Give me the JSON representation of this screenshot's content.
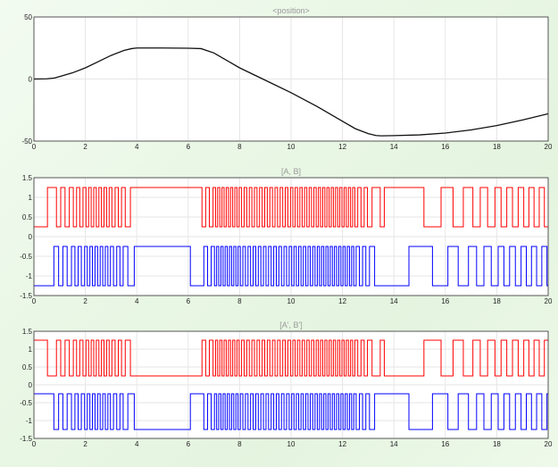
{
  "colors": {
    "page_bg": "#eaf7e6",
    "axes_bg": "#ffffff",
    "grid": "#e6e6e6",
    "position_line": "#111111",
    "signal_a": "#ff0000",
    "signal_b": "#0000ff",
    "title_text": "#9a9a9a"
  },
  "chart_data": [
    {
      "type": "line",
      "title": "<position>",
      "xlabel": "",
      "ylabel": "",
      "xlim": [
        0,
        20
      ],
      "ylim": [
        -50,
        50
      ],
      "x_ticks": [
        "0",
        "2",
        "4",
        "6",
        "8",
        "10",
        "12",
        "14",
        "16",
        "18",
        "20"
      ],
      "y_ticks": [
        "50",
        "0",
        "-50"
      ],
      "grid": true,
      "legend": "none",
      "series": [
        {
          "color": "#111111",
          "x": [
            0,
            0.5,
            0.8,
            1.0,
            1.5,
            2.0,
            2.5,
            3.0,
            3.5,
            3.8,
            4.0,
            5.0,
            6.0,
            6.5,
            7.0,
            7.5,
            8.0,
            9.0,
            10.0,
            11.0,
            12.0,
            12.5,
            13.0,
            13.3,
            13.5,
            14.0,
            15.0,
            16.0,
            17.0,
            18.0,
            19.0,
            20.0
          ],
          "y": [
            0,
            0.2,
            0.8,
            2,
            5,
            9,
            14,
            19,
            23,
            24.5,
            25,
            25,
            24.8,
            24.5,
            21,
            15,
            9,
            -1,
            -11,
            -22,
            -34,
            -40,
            -44,
            -45.5,
            -45.8,
            -45.6,
            -45,
            -43.5,
            -41,
            -37.5,
            -33,
            -28
          ]
        }
      ]
    },
    {
      "type": "line",
      "title": "[A, B]",
      "xlabel": "",
      "ylabel": "",
      "xlim": [
        0,
        20
      ],
      "ylim": [
        -1.5,
        1.5
      ],
      "x_ticks": [
        "0",
        "2",
        "4",
        "6",
        "8",
        "10",
        "12",
        "14",
        "16",
        "18",
        "20"
      ],
      "y_ticks": [
        "1.5",
        "1",
        "0.5",
        "0",
        "-0.5",
        "-1",
        "-1.5"
      ],
      "grid": true,
      "legend": "none",
      "series": [
        {
          "color": "#ff0000",
          "low": 0.25,
          "high": 1.25,
          "initial_low": true
        },
        {
          "color": "#0000ff",
          "low": -1.25,
          "high": -0.25,
          "initial_low": true
        }
      ]
    },
    {
      "type": "line",
      "title": "[A', B']",
      "xlabel": "",
      "ylabel": "",
      "xlim": [
        0,
        20
      ],
      "ylim": [
        -1.5,
        1.5
      ],
      "x_ticks": [
        "0",
        "2",
        "4",
        "6",
        "8",
        "10",
        "12",
        "14",
        "16",
        "18",
        "20"
      ],
      "y_ticks": [
        "1.5",
        "1",
        "0.5",
        "0",
        "-0.5",
        "-1",
        "-1.5"
      ],
      "grid": true,
      "legend": "none",
      "series": [
        {
          "color": "#ff0000",
          "low": 0.25,
          "high": 1.25,
          "initial_low": false
        },
        {
          "color": "#0000ff",
          "low": -1.25,
          "high": -0.25,
          "initial_low": false
        }
      ]
    }
  ]
}
